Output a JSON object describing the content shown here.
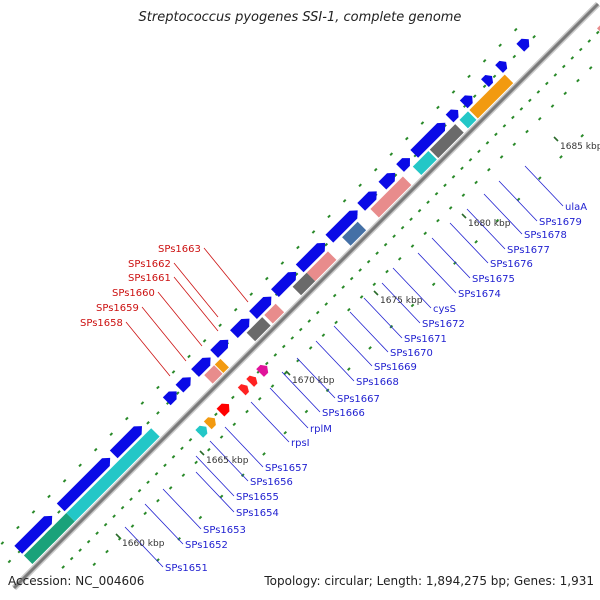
{
  "header": {
    "title": "Streptococcus pyogenes SSI-1, complete genome"
  },
  "footer": {
    "accession": "Accession: NC_004606",
    "summary": "Topology: circular; Length: 1,894,275 bp; Genes: 1,931"
  },
  "scale_marks": [
    "1660 kbp",
    "1665 kbp",
    "1670 kbp",
    "1675 kbp",
    "1680 kbp",
    "1685 kbp"
  ],
  "gene_labels_forward": [
    "SPs1651",
    "SPs1652",
    "SPs1653",
    "SPs1654",
    "SPs1655",
    "SPs1656",
    "SPs1657",
    "rpsI",
    "rplM",
    "SPs1666",
    "SPs1667",
    "SPs1668",
    "SPs1669",
    "SPs1670",
    "SPs1671",
    "SPs1672",
    "cysS",
    "SPs1674",
    "SPs1675",
    "SPs1676",
    "SPs1677",
    "SPs1678",
    "SPs1679",
    "ulaA"
  ],
  "gene_labels_reverse": [
    "SPs1663",
    "SPs1662",
    "SPs1661",
    "SPs1660",
    "SPs1659",
    "SPs1658"
  ],
  "colors": {
    "forward_label": "#1f1fd0",
    "reverse_label": "#cc1111",
    "backbone": "#7a7a7a",
    "cds_forward": "#0a0ae6",
    "dots": "#2a8a2a"
  }
}
